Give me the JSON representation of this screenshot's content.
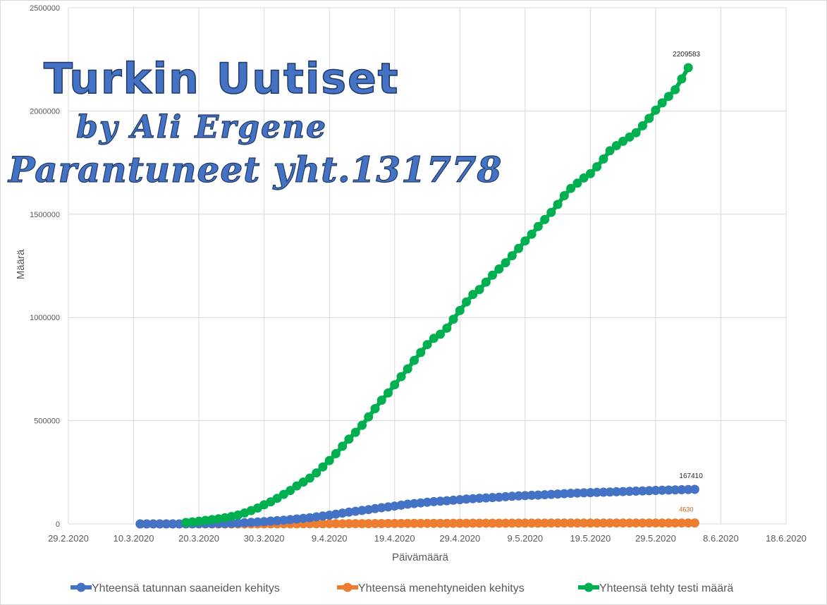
{
  "watermark": {
    "line1": "Turkin Uutiset",
    "line2": "by Ali Ergene",
    "line3": "Parantuneet yht.131778"
  },
  "colors": {
    "cases": "#4472c4",
    "deaths": "#ed7d31",
    "tests": "#00b050",
    "grid": "#d9d9d9"
  },
  "chart_data": {
    "type": "line",
    "xlabel": "Päivämäärä",
    "ylabel": "Määrä",
    "ylim": [
      0,
      2500000
    ],
    "yticks": [
      0,
      500000,
      1000000,
      1500000,
      2000000,
      2500000
    ],
    "xticks": [
      "29.2.2020",
      "10.3.2020",
      "20.3.2020",
      "30.3.2020",
      "9.4.2020",
      "19.4.2020",
      "29.4.2020",
      "9.5.2020",
      "19.5.2020",
      "29.5.2020",
      "8.6.2020",
      "18.6.2020"
    ],
    "legend_position": "bottom",
    "grid": true,
    "series": [
      {
        "name": "Yhteensä tatunnan saaneiden kehitys",
        "color": "#4472c4",
        "first_day": 11,
        "values": [
          1,
          1,
          5,
          6,
          18,
          47,
          98,
          191,
          359,
          670,
          947,
          1236,
          1529,
          1872,
          2433,
          3629,
          5698,
          7402,
          9217,
          10827,
          13531,
          15679,
          18135,
          20921,
          23934,
          27069,
          30217,
          34109,
          38226,
          42282,
          47029,
          52167,
          56956,
          61049,
          65111,
          69392,
          74193,
          78546,
          82329,
          86306,
          90980,
          95591,
          98674,
          101790,
          104912,
          107773,
          110130,
          112261,
          114653,
          117589,
          120204,
          122392,
          124375,
          126045,
          127659,
          129491,
          131744,
          133721,
          135569,
          137115,
          138657,
          139771,
          141475,
          143114,
          144749,
          146457,
          148067,
          149435,
          150593,
          151615,
          152587,
          153548,
          154500,
          155686,
          156827,
          157814,
          158762,
          159797,
          160979,
          162120,
          163103,
          163942,
          164769,
          165555,
          166422,
          167410
        ],
        "labels_last": [
          "167410"
        ]
      },
      {
        "name": "Yhteensä menehtyneiden kehitys",
        "color": "#ed7d31",
        "first_day": 11,
        "values": [
          0,
          0,
          0,
          0,
          0,
          1,
          1,
          2,
          4,
          9,
          21,
          30,
          37,
          44,
          59,
          75,
          92,
          108,
          131,
          168,
          214,
          277,
          356,
          425,
          501,
          574,
          649,
          725,
          812,
          908,
          1006,
          1101,
          1198,
          1296,
          1403,
          1518,
          1643,
          1769,
          1890,
          2017,
          2140,
          2259,
          2376,
          2491,
          2600,
          2706,
          2805,
          2900,
          2992,
          3081,
          3174,
          3258,
          3336,
          3397,
          3461,
          3520,
          3584,
          3641,
          3689,
          3739,
          3786,
          3841,
          3894,
          3952,
          4007,
          4055,
          4096,
          4140,
          4171,
          4199,
          4222,
          4249,
          4276,
          4308,
          4340,
          4369,
          4397,
          4431,
          4461,
          4489,
          4515,
          4540,
          4563,
          4585,
          4609,
          4630
        ],
        "labels_last": [
          "4630"
        ]
      },
      {
        "name": "Yhteensä tehty testi määrä",
        "color": "#00b050",
        "first_day": 18,
        "values": [
          7000,
          9800,
          13200,
          17000,
          20700,
          24900,
          29900,
          35700,
          43100,
          52800,
          64400,
          76900,
          92400,
          107000,
          124000,
          143000,
          162000,
          184000,
          203000,
          222000,
          247000,
          276000,
          307000,
          340000,
          376000,
          410555,
          443626,
          477716,
          518143,
          558413,
          598933,
          634277,
          673980,
          713469,
          750944,
          791906,
          830257,
          868565,
          898744,
          918885,
          948115,
          991613,
          1033617,
          1075048,
          1111366,
          1135364,
          1171153,
          1204441,
          1234777,
          1265119,
          1298806,
          1334411,
          1370598,
          1403330,
          1440671,
          1474003,
          1508824,
          1547389,
          1589664,
          1624994,
          1650130,
          1675579,
          1696333,
          1729968,
          1767495,
          1807673,
          1832256,
          1853299,
          1873590,
          1894607,
          1928209,
          1964264,
          2003594,
          2039194,
          2070719,
          2103034,
          2155349,
          2209583
        ],
        "labels_last": [
          "2209583"
        ]
      }
    ]
  }
}
